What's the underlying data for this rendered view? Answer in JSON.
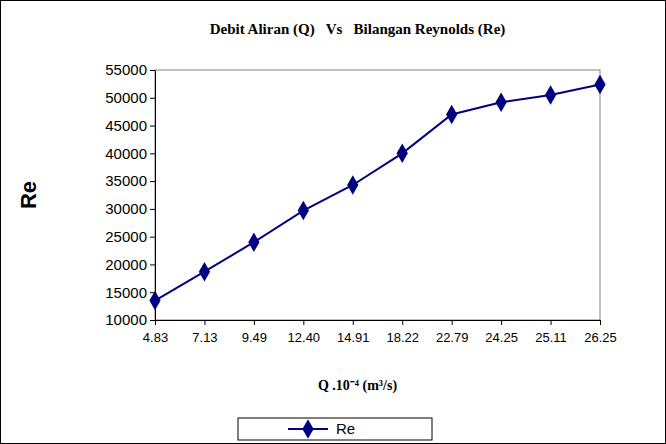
{
  "chart_data": {
    "type": "line",
    "title": "Debit Aliran (Q)   Vs   Bilangan Reynolds (Re)",
    "x_label": "Q .10⁻⁴ (m³/s)",
    "y_label": "Re",
    "categories": [
      "4.83",
      "7.13",
      "9.49",
      "12.40",
      "14.91",
      "18.22",
      "22.79",
      "24.25",
      "25.11",
      "26.25"
    ],
    "series": [
      {
        "name": "Re",
        "color": "#000080",
        "marker": "diamond",
        "values": [
          13500,
          18700,
          24000,
          29700,
          34300,
          40000,
          47000,
          49200,
          50500,
          52400
        ]
      }
    ],
    "ylim": [
      10000,
      55000
    ],
    "yticks": [
      10000,
      15000,
      20000,
      25000,
      30000,
      35000,
      40000,
      45000,
      50000,
      55000
    ],
    "grid": false,
    "legend": "bottom"
  }
}
